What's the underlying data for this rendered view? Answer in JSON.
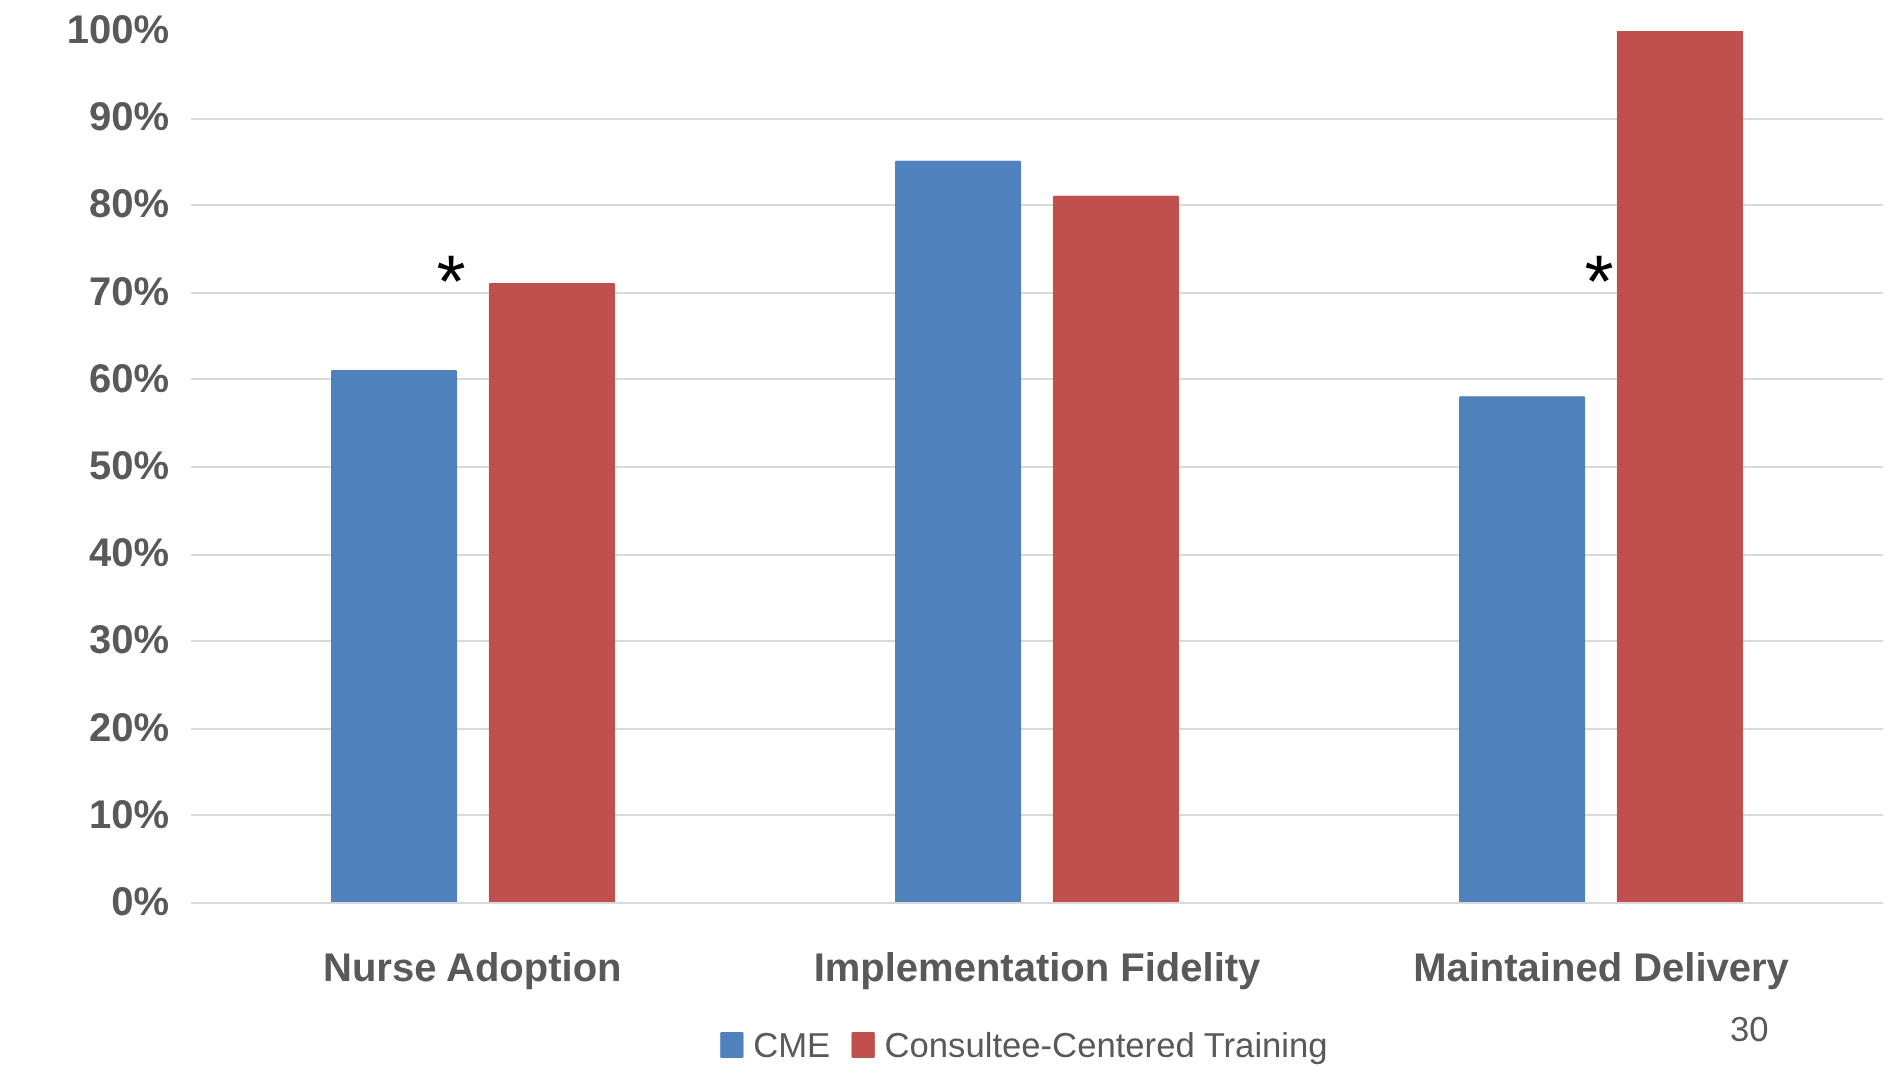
{
  "chart_data": {
    "type": "bar",
    "categories": [
      "Nurse Adoption",
      "Implementation Fidelity",
      "Maintained Delivery"
    ],
    "series": [
      {
        "name": "CME",
        "color": "#4f81bd",
        "values": [
          61,
          85,
          58
        ]
      },
      {
        "name": "Consultee-Centered Training",
        "color": "#c0504d",
        "values": [
          71,
          81,
          100
        ]
      }
    ],
    "ylim": [
      0,
      100
    ],
    "yticks": [
      {
        "value": 0,
        "label": "0%"
      },
      {
        "value": 10,
        "label": "10%"
      },
      {
        "value": 20,
        "label": "20%"
      },
      {
        "value": 30,
        "label": "30%"
      },
      {
        "value": 40,
        "label": "40%"
      },
      {
        "value": 50,
        "label": "50%"
      },
      {
        "value": 60,
        "label": "60%"
      },
      {
        "value": 70,
        "label": "70%"
      },
      {
        "value": 80,
        "label": "80%"
      },
      {
        "value": 90,
        "label": "90%"
      },
      {
        "value": 100,
        "label": "100%"
      }
    ],
    "grid": "y",
    "legend": "bottom",
    "annotations": [
      "*",
      "*",
      "30"
    ]
  }
}
